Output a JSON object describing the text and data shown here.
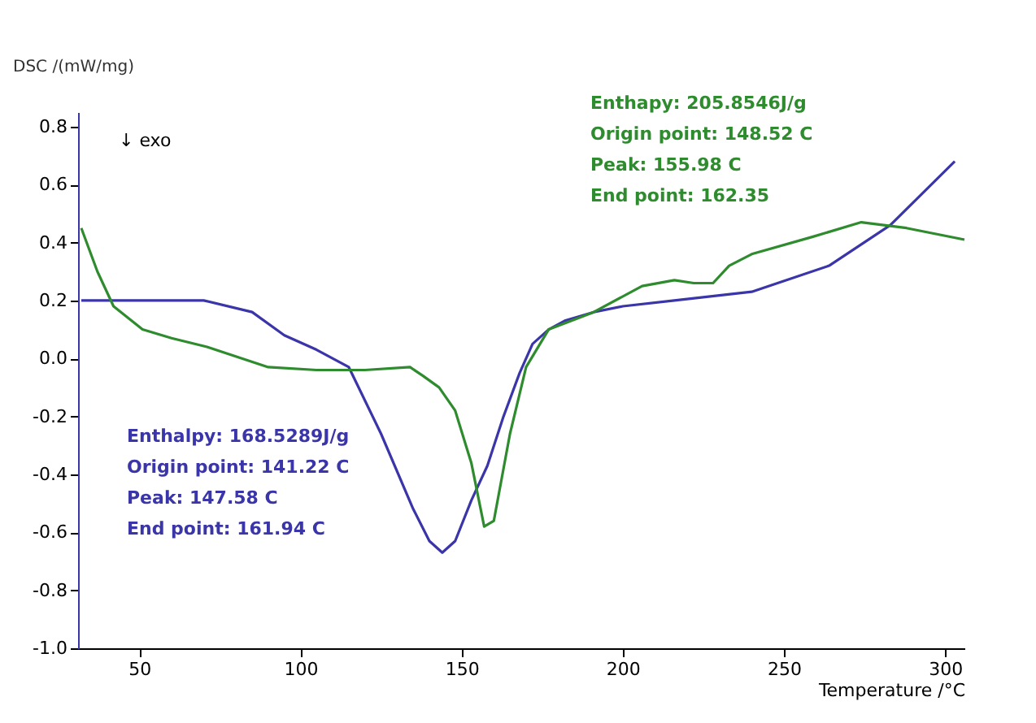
{
  "chart_data": {
    "type": "line",
    "xlabel": "Temperature /°C",
    "ylabel": "DSC /(mW/mg)",
    "xlim": [
      31,
      306
    ],
    "xticks": [
      50,
      100,
      150,
      200,
      250,
      300
    ],
    "ylim": [
      -1.0,
      0.85
    ],
    "yticks": [
      {
        "value": -1.0,
        "label": "-1.0"
      },
      {
        "value": -0.8,
        "label": "-0.8"
      },
      {
        "value": -0.6,
        "label": "-0.6"
      },
      {
        "value": -0.4,
        "label": "-0.4"
      },
      {
        "value": -0.2,
        "label": "-0.2"
      },
      {
        "value": 0.0,
        "label": "0.0"
      },
      {
        "value": 0.2,
        "label": "0.2"
      },
      {
        "value": 0.4,
        "label": "0.4"
      },
      {
        "value": 0.6,
        "label": "0.6"
      },
      {
        "value": 0.8,
        "label": "0.8"
      }
    ],
    "grid": false,
    "marker": "none",
    "line_style": "solid",
    "series": [
      {
        "color": "#3a35a8",
        "x": [
          32,
          50,
          70,
          85,
          95,
          105,
          115,
          125,
          135,
          140,
          144,
          148,
          153,
          158,
          163,
          168,
          172,
          177,
          182,
          191,
          200,
          216,
          240,
          264,
          283,
          303
        ],
        "values": [
          0.2,
          0.2,
          0.2,
          0.16,
          0.08,
          0.03,
          -0.03,
          -0.26,
          -0.52,
          -0.63,
          -0.67,
          -0.63,
          -0.49,
          -0.37,
          -0.2,
          -0.05,
          0.05,
          0.1,
          0.13,
          0.16,
          0.18,
          0.2,
          0.23,
          0.32,
          0.46,
          0.68
        ]
      },
      {
        "color": "#2e8b2e",
        "x": [
          32,
          37,
          42,
          51,
          60,
          71,
          90,
          105,
          120,
          134,
          138,
          143,
          148,
          153,
          157,
          160,
          165,
          170,
          177,
          191,
          206,
          216,
          222,
          228,
          233,
          240,
          259,
          274,
          288,
          306
        ],
        "values": [
          0.45,
          0.3,
          0.18,
          0.1,
          0.07,
          0.04,
          -0.03,
          -0.04,
          -0.04,
          -0.03,
          -0.06,
          -0.1,
          -0.18,
          -0.36,
          -0.58,
          -0.56,
          -0.26,
          -0.03,
          0.1,
          0.16,
          0.25,
          0.27,
          0.26,
          0.26,
          0.32,
          0.36,
          0.42,
          0.47,
          0.45,
          0.41
        ]
      }
    ],
    "annotations": [
      "↓ exo",
      "Enthalpy: 168.5289J/g",
      "Origin point: 141.22 C",
      "Peak: 147.58 C",
      "End point: 161.94 C",
      "Enthapy: 205.8546J/g",
      "Origin point: 148.52 C",
      "Peak: 155.98 C",
      "End point: 162.35"
    ]
  }
}
